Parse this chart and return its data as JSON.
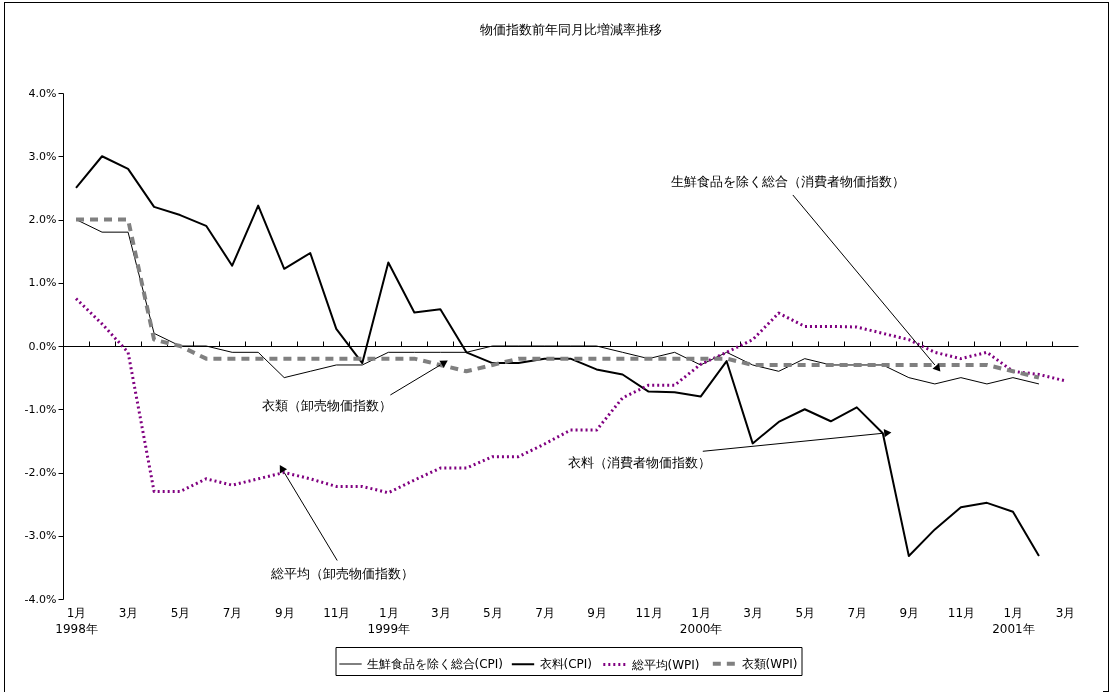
{
  "chart_data": {
    "type": "line",
    "title": "物価指数前年同月比増減率推移",
    "x": [
      "1998-01",
      "1998-02",
      "1998-03",
      "1998-04",
      "1998-05",
      "1998-06",
      "1998-07",
      "1998-08",
      "1998-09",
      "1998-10",
      "1998-11",
      "1998-12",
      "1999-01",
      "1999-02",
      "1999-03",
      "1999-04",
      "1999-05",
      "1999-06",
      "1999-07",
      "1999-08",
      "1999-09",
      "1999-10",
      "1999-11",
      "1999-12",
      "2000-01",
      "2000-02",
      "2000-03",
      "2000-04",
      "2000-05",
      "2000-06",
      "2000-07",
      "2000-08",
      "2000-09",
      "2000-10",
      "2000-11",
      "2000-12",
      "2001-01",
      "2001-02",
      "2001-03"
    ],
    "series": [
      {
        "name": "生鮮食品を除く総合(CPI)",
        "color": "#000000",
        "line_style": "solid",
        "values": [
          2.0,
          1.8,
          1.8,
          0.2,
          0.0,
          0.0,
          -0.1,
          -0.1,
          -0.5,
          -0.4,
          -0.3,
          -0.3,
          -0.1,
          -0.1,
          -0.1,
          -0.1,
          0.0,
          0.0,
          0.0,
          0.0,
          0.0,
          -0.1,
          -0.2,
          -0.1,
          -0.3,
          -0.1,
          -0.3,
          -0.4,
          -0.2,
          -0.3,
          -0.3,
          -0.3,
          -0.5,
          -0.6,
          -0.5,
          -0.6,
          -0.5,
          -0.6,
          null
        ]
      },
      {
        "name": "衣料(CPI)",
        "color": "#000000",
        "line_style": "solid",
        "values": [
          2.5,
          3.0,
          2.8,
          2.2,
          2.07,
          1.9,
          1.27,
          2.22,
          1.22,
          1.47,
          0.27,
          -0.27,
          1.32,
          0.53,
          0.58,
          -0.1,
          -0.27,
          -0.27,
          -0.2,
          -0.2,
          -0.37,
          -0.45,
          -0.72,
          -0.73,
          -0.8,
          -0.24,
          -1.54,
          -1.2,
          -1.0,
          -1.19,
          -0.97,
          -1.38,
          -3.32,
          -2.9,
          -2.55,
          -2.48,
          -2.62,
          -3.32,
          null
        ]
      },
      {
        "name": "総平均(WPI)",
        "color": "#800080",
        "line_style": "dotted",
        "values": [
          0.75,
          0.35,
          -0.1,
          -2.3,
          -2.3,
          -2.1,
          -2.2,
          -2.1,
          -2.0,
          -2.1,
          -2.22,
          -2.22,
          -2.32,
          -2.12,
          -1.93,
          -1.93,
          -1.75,
          -1.75,
          -1.55,
          -1.33,
          -1.33,
          -0.82,
          -0.62,
          -0.62,
          -0.29,
          -0.1,
          0.1,
          0.52,
          0.31,
          0.31,
          0.3,
          0.2,
          0.1,
          -0.1,
          -0.2,
          -0.1,
          -0.4,
          -0.45,
          -0.55
        ]
      },
      {
        "name": "衣類(WPI)",
        "color": "#808080",
        "line_style": "dashed",
        "values": [
          2.0,
          2.0,
          2.0,
          0.1,
          0.0,
          -0.2,
          -0.2,
          -0.2,
          -0.2,
          -0.2,
          -0.2,
          -0.2,
          -0.2,
          -0.2,
          -0.3,
          -0.4,
          -0.3,
          -0.2,
          -0.2,
          -0.2,
          -0.2,
          -0.2,
          -0.2,
          -0.2,
          -0.2,
          -0.2,
          -0.3,
          -0.3,
          -0.3,
          -0.3,
          -0.3,
          -0.3,
          -0.3,
          -0.3,
          -0.3,
          -0.3,
          -0.4,
          -0.5,
          null
        ]
      }
    ],
    "annotations": [
      {
        "text": "生鮮食品を除く総合（消費者物価指数）",
        "x": "2000-10",
        "y": -0.3
      },
      {
        "text": "衣類（卸売物価指数）",
        "x": "1999-03",
        "y": -0.3
      },
      {
        "text": "衣料（消費者物価指数）",
        "x": "2000-08",
        "y": -1.38
      },
      {
        "text": "総平均（卸売物価指数）",
        "x": "1998-09",
        "y": -2.0
      }
    ],
    "xlim": [
      "1997-12-16",
      "2001-03-16"
    ],
    "xticks": [
      {
        "value": "1998-01",
        "label": "1月\n1998年"
      },
      {
        "value": "1998-03",
        "label": "3月"
      },
      {
        "value": "1998-05",
        "label": "5月"
      },
      {
        "value": "1998-07",
        "label": "7月"
      },
      {
        "value": "1998-09",
        "label": "9月"
      },
      {
        "value": "1998-11",
        "label": "11月"
      },
      {
        "value": "1999-01",
        "label": "1月\n1999年"
      },
      {
        "value": "1999-03",
        "label": "3月"
      },
      {
        "value": "1999-05",
        "label": "5月"
      },
      {
        "value": "1999-07",
        "label": "7月"
      },
      {
        "value": "1999-09",
        "label": "9月"
      },
      {
        "value": "1999-11",
        "label": "11月"
      },
      {
        "value": "2000-01",
        "label": "1月\n2000年"
      },
      {
        "value": "2000-03",
        "label": "3月"
      },
      {
        "value": "2000-05",
        "label": "5月"
      },
      {
        "value": "2000-07",
        "label": "7月"
      },
      {
        "value": "2000-09",
        "label": "9月"
      },
      {
        "value": "2000-11",
        "label": "11月"
      },
      {
        "value": "2001-01",
        "label": "1月\n2001年"
      },
      {
        "value": "2001-03",
        "label": "3月"
      },
      {
        "value": "1998-01-16",
        "label": null
      },
      {
        "value": "1998-02-16",
        "label": null
      },
      {
        "value": "1998-03-16",
        "label": null
      },
      {
        "value": "1998-04-16",
        "label": null
      },
      {
        "value": "1998-05-16",
        "label": null
      },
      {
        "value": "1998-06-16",
        "label": null
      },
      {
        "value": "1998-07-16",
        "label": null
      },
      {
        "value": "1998-08-16",
        "label": null
      },
      {
        "value": "1998-09-16",
        "label": null
      },
      {
        "value": "1998-10-16",
        "label": null
      },
      {
        "value": "1998-11-16",
        "label": null
      },
      {
        "value": "1998-12-16",
        "label": null
      },
      {
        "value": "1999-01-16",
        "label": null
      },
      {
        "value": "1999-02-16",
        "label": null
      },
      {
        "value": "1999-03-16",
        "label": null
      },
      {
        "value": "1999-04-16",
        "label": null
      },
      {
        "value": "1999-05-16",
        "label": null
      },
      {
        "value": "1999-06-16",
        "label": null
      },
      {
        "value": "1999-07-16",
        "label": null
      },
      {
        "value": "1999-08-16",
        "label": null
      },
      {
        "value": "1999-09-16",
        "label": null
      },
      {
        "value": "1999-10-16",
        "label": null
      },
      {
        "value": "1999-11-16",
        "label": null
      },
      {
        "value": "1999-12-16",
        "label": null
      },
      {
        "value": "2000-01-16",
        "label": null
      },
      {
        "value": "2000-02-16",
        "label": null
      },
      {
        "value": "2000-03-16",
        "label": null
      },
      {
        "value": "2000-04-16",
        "label": null
      },
      {
        "value": "2000-05-16",
        "label": null
      },
      {
        "value": "2000-06-16",
        "label": null
      },
      {
        "value": "2000-07-16",
        "label": null
      },
      {
        "value": "2000-08-16",
        "label": null
      },
      {
        "value": "2000-09-16",
        "label": null
      },
      {
        "value": "2000-10-16",
        "label": null
      },
      {
        "value": "2000-11-16",
        "label": null
      },
      {
        "value": "2000-12-16",
        "label": null
      },
      {
        "value": "2001-01-16",
        "label": null
      },
      {
        "value": "2001-02-16",
        "label": null
      }
    ],
    "ylim": [
      -4,
      4
    ],
    "yticks": [
      {
        "value": -4,
        "label": "-4.0%"
      },
      {
        "value": -3,
        "label": "-3.0%"
      },
      {
        "value": -2,
        "label": "-2.0%"
      },
      {
        "value": -1,
        "label": "-1.0%"
      },
      {
        "value": 0,
        "label": "0.0%"
      },
      {
        "value": 1,
        "label": "1.0%"
      },
      {
        "value": 2,
        "label": "2.0%"
      },
      {
        "value": 3,
        "label": "3.0%"
      },
      {
        "value": 4,
        "label": "4.0%"
      }
    ],
    "legend": "bottom",
    "marker": "none"
  }
}
